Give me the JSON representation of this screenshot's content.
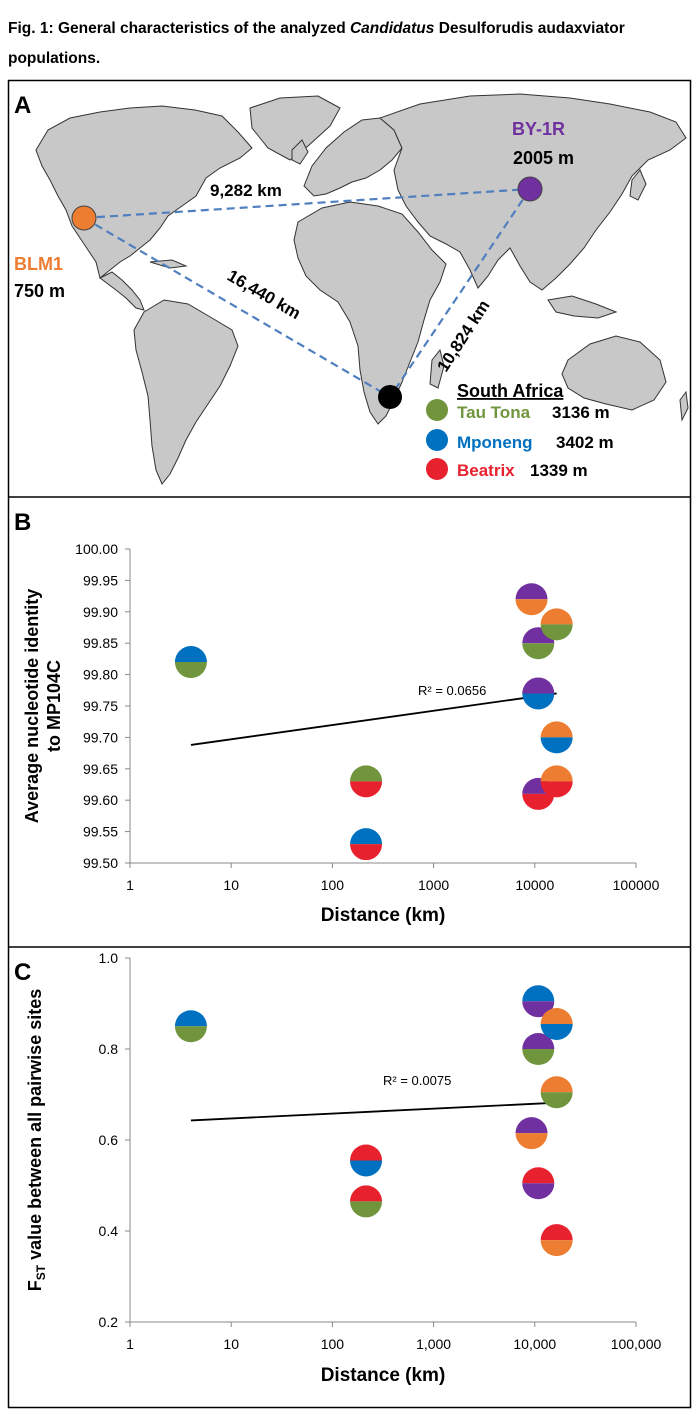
{
  "caption": {
    "prefix": "Fig. 1: General characteristics of the analyzed ",
    "italic": "Candidatus",
    "suffix": " Desulforudis audaxviator populations."
  },
  "colors": {
    "BLM1": "#ed7d31",
    "BY1R": "#7030a0",
    "TauTona": "#70953c",
    "Mponeng": "#0070c0",
    "Beatrix": "#e8212e",
    "SouthAfrica": "#000000",
    "land": "#c8c8c8",
    "route": "#4f7fbf"
  },
  "panelA": {
    "letter": "A",
    "sites": {
      "blm1": {
        "name": "BLM1",
        "depth": "750 m"
      },
      "by1r": {
        "name": "BY-1R",
        "depth": "2005 m"
      }
    },
    "distances": {
      "blm_by": "9,282 km",
      "blm_sa": "16,440 km",
      "by_sa": "10,824 km"
    },
    "legend": {
      "title": "South Africa",
      "items": [
        {
          "name": "Tau Tona",
          "depth": "3136 m",
          "color": "#70953c"
        },
        {
          "name": "Mponeng",
          "depth": "3402 m",
          "color": "#0070c0"
        },
        {
          "name": "Beatrix",
          "depth": "1339 m",
          "color": "#e8212e"
        }
      ]
    }
  },
  "chart_data": [
    {
      "type": "scatter",
      "panel": "B",
      "xlabel": "Distance (km)",
      "ylabel": "Average nucleotide identity to MP104C",
      "xscale": "log",
      "xlim": [
        1,
        100000
      ],
      "ylim": [
        99.5,
        100.0
      ],
      "xticks": [
        "1",
        "10",
        "100",
        "1000",
        "10000",
        "100000"
      ],
      "yticks": [
        "99.50",
        "99.55",
        "99.60",
        "99.65",
        "99.70",
        "99.75",
        "99.80",
        "99.85",
        "99.90",
        "99.95",
        "100.00"
      ],
      "points": [
        {
          "x": 4,
          "y": 99.82,
          "top": "#0070c0",
          "bottom": "#70953c"
        },
        {
          "x": 215,
          "y": 99.63,
          "top": "#70953c",
          "bottom": "#e8212e"
        },
        {
          "x": 215,
          "y": 99.53,
          "top": "#0070c0",
          "bottom": "#e8212e"
        },
        {
          "x": 9282,
          "y": 99.92,
          "top": "#7030a0",
          "bottom": "#ed7d31"
        },
        {
          "x": 10824,
          "y": 99.85,
          "top": "#7030a0",
          "bottom": "#70953c"
        },
        {
          "x": 10824,
          "y": 99.77,
          "top": "#7030a0",
          "bottom": "#0070c0"
        },
        {
          "x": 10824,
          "y": 99.61,
          "top": "#7030a0",
          "bottom": "#e8212e"
        },
        {
          "x": 16440,
          "y": 99.88,
          "top": "#ed7d31",
          "bottom": "#70953c"
        },
        {
          "x": 16440,
          "y": 99.7,
          "top": "#ed7d31",
          "bottom": "#0070c0"
        },
        {
          "x": 16440,
          "y": 99.63,
          "top": "#ed7d31",
          "bottom": "#e8212e"
        }
      ],
      "trendline": {
        "x": [
          4,
          16440
        ],
        "y": [
          99.688,
          99.77
        ],
        "label": "R² = 0.0656"
      },
      "grid": false
    },
    {
      "type": "scatter",
      "panel": "C",
      "xlabel": "Distance (km)",
      "ylabel": "value between all pairwise sites",
      "ylabel_var": "F",
      "ylabel_sub": "ST",
      "xscale": "log",
      "xlim": [
        1,
        100000
      ],
      "ylim": [
        0.2,
        1.0
      ],
      "xticks": [
        "1",
        "10",
        "100",
        "1,000",
        "10,000",
        "100,000"
      ],
      "yticks": [
        "0.2",
        "0.4",
        "0.6",
        "0.8",
        "1.0"
      ],
      "points": [
        {
          "x": 4,
          "y": 0.85,
          "top": "#0070c0",
          "bottom": "#70953c"
        },
        {
          "x": 215,
          "y": 0.555,
          "top": "#e8212e",
          "bottom": "#0070c0"
        },
        {
          "x": 215,
          "y": 0.465,
          "top": "#e8212e",
          "bottom": "#70953c"
        },
        {
          "x": 9282,
          "y": 0.615,
          "top": "#7030a0",
          "bottom": "#ed7d31"
        },
        {
          "x": 10824,
          "y": 0.905,
          "top": "#0070c0",
          "bottom": "#7030a0"
        },
        {
          "x": 10824,
          "y": 0.8,
          "top": "#7030a0",
          "bottom": "#70953c"
        },
        {
          "x": 10824,
          "y": 0.505,
          "top": "#e8212e",
          "bottom": "#7030a0"
        },
        {
          "x": 16440,
          "y": 0.855,
          "top": "#ed7d31",
          "bottom": "#0070c0"
        },
        {
          "x": 16440,
          "y": 0.705,
          "top": "#ed7d31",
          "bottom": "#70953c"
        },
        {
          "x": 16440,
          "y": 0.38,
          "top": "#e8212e",
          "bottom": "#ed7d31"
        }
      ],
      "trendline": {
        "x": [
          4,
          16440
        ],
        "y": [
          0.643,
          0.682
        ],
        "label": "R² = 0.0075"
      },
      "grid": false
    }
  ]
}
